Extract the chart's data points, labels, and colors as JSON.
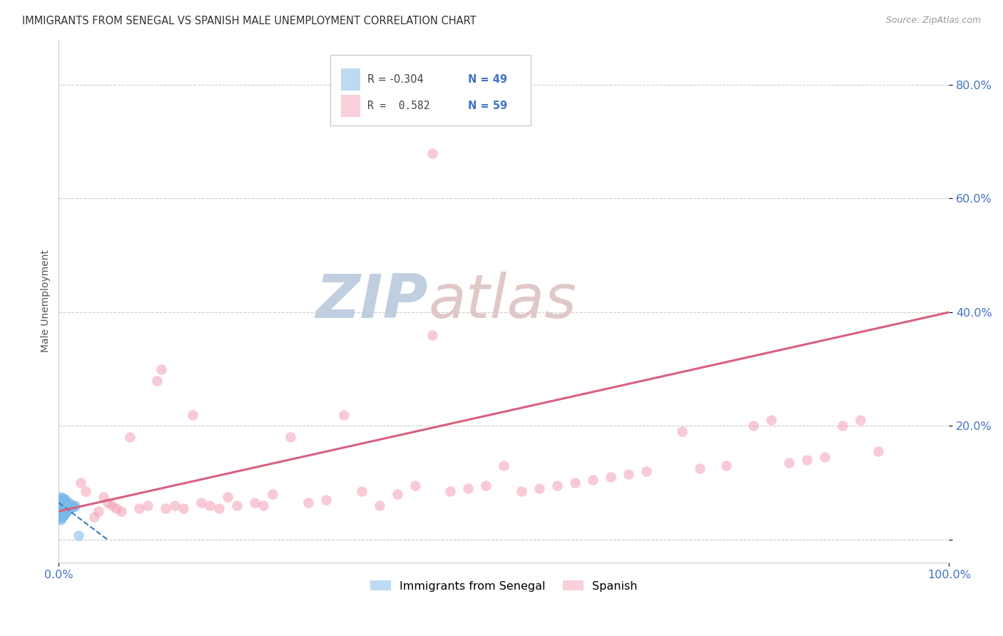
{
  "title": "IMMIGRANTS FROM SENEGAL VS SPANISH MALE UNEMPLOYMENT CORRELATION CHART",
  "source": "Source: ZipAtlas.com",
  "ylabel": "Male Unemployment",
  "blue_color": "#7ab8e8",
  "pink_color": "#f4a0b5",
  "trendline_blue_color": "#3a7bbf",
  "trendline_pink_color": "#d95f7f",
  "tick_color": "#4472c4",
  "watermark_zip_color": "#c8d8ea",
  "watermark_atlas_color": "#d8c8c8",
  "grid_color": "#cccccc",
  "spine_color": "#cccccc",
  "legend_r1": "R = -0.304",
  "legend_n1": "N = 49",
  "legend_r2": "R =  0.582",
  "legend_n2": "N = 59",
  "blue_x": [
    0.001,
    0.001,
    0.001,
    0.002,
    0.002,
    0.002,
    0.002,
    0.002,
    0.002,
    0.003,
    0.003,
    0.003,
    0.003,
    0.003,
    0.004,
    0.004,
    0.004,
    0.004,
    0.004,
    0.005,
    0.005,
    0.005,
    0.005,
    0.006,
    0.006,
    0.006,
    0.006,
    0.007,
    0.007,
    0.007,
    0.007,
    0.008,
    0.008,
    0.008,
    0.009,
    0.009,
    0.01,
    0.01,
    0.011,
    0.011,
    0.012,
    0.012,
    0.013,
    0.014,
    0.015,
    0.016,
    0.017,
    0.018,
    0.022
  ],
  "blue_y": [
    0.04,
    0.055,
    0.07,
    0.035,
    0.048,
    0.055,
    0.062,
    0.068,
    0.075,
    0.038,
    0.05,
    0.058,
    0.065,
    0.072,
    0.04,
    0.052,
    0.06,
    0.068,
    0.074,
    0.042,
    0.054,
    0.062,
    0.07,
    0.044,
    0.055,
    0.063,
    0.071,
    0.046,
    0.057,
    0.064,
    0.072,
    0.048,
    0.058,
    0.066,
    0.05,
    0.06,
    0.052,
    0.062,
    0.054,
    0.064,
    0.056,
    0.065,
    0.057,
    0.06,
    0.058,
    0.06,
    0.058,
    0.06,
    0.008
  ],
  "pink_x": [
    0.025,
    0.03,
    0.04,
    0.045,
    0.05,
    0.055,
    0.06,
    0.065,
    0.07,
    0.08,
    0.09,
    0.1,
    0.11,
    0.115,
    0.12,
    0.13,
    0.14,
    0.15,
    0.16,
    0.17,
    0.18,
    0.19,
    0.2,
    0.22,
    0.23,
    0.24,
    0.26,
    0.28,
    0.3,
    0.32,
    0.34,
    0.36,
    0.38,
    0.4,
    0.42,
    0.44,
    0.46,
    0.48,
    0.5,
    0.52,
    0.54,
    0.56,
    0.58,
    0.6,
    0.62,
    0.64,
    0.66,
    0.7,
    0.72,
    0.75,
    0.78,
    0.8,
    0.82,
    0.84,
    0.86,
    0.88,
    0.9,
    0.92,
    0.42
  ],
  "pink_y": [
    0.1,
    0.085,
    0.04,
    0.05,
    0.075,
    0.065,
    0.06,
    0.055,
    0.05,
    0.18,
    0.055,
    0.06,
    0.28,
    0.3,
    0.055,
    0.06,
    0.055,
    0.22,
    0.065,
    0.06,
    0.055,
    0.075,
    0.06,
    0.065,
    0.06,
    0.08,
    0.18,
    0.065,
    0.07,
    0.22,
    0.085,
    0.06,
    0.08,
    0.095,
    0.36,
    0.085,
    0.09,
    0.095,
    0.13,
    0.085,
    0.09,
    0.095,
    0.1,
    0.105,
    0.11,
    0.115,
    0.12,
    0.19,
    0.125,
    0.13,
    0.2,
    0.21,
    0.135,
    0.14,
    0.145,
    0.2,
    0.21,
    0.155,
    0.68
  ],
  "blue_trend_x": [
    0.0,
    0.055
  ],
  "blue_trend_y_start": 0.065,
  "blue_trend_y_end": 0.0,
  "pink_trend_x": [
    0.0,
    1.0
  ],
  "pink_trend_y_start": 0.05,
  "pink_trend_y_end": 0.4,
  "ylim_min": -0.04,
  "ylim_max": 0.88,
  "xlim_min": 0.0,
  "xlim_max": 1.0,
  "yticks": [
    0.0,
    0.2,
    0.4,
    0.6,
    0.8
  ],
  "ytick_labels": [
    "",
    "20.0%",
    "40.0%",
    "60.0%",
    "80.0%"
  ],
  "xtick_left": "0.0%",
  "xtick_right": "100.0%"
}
